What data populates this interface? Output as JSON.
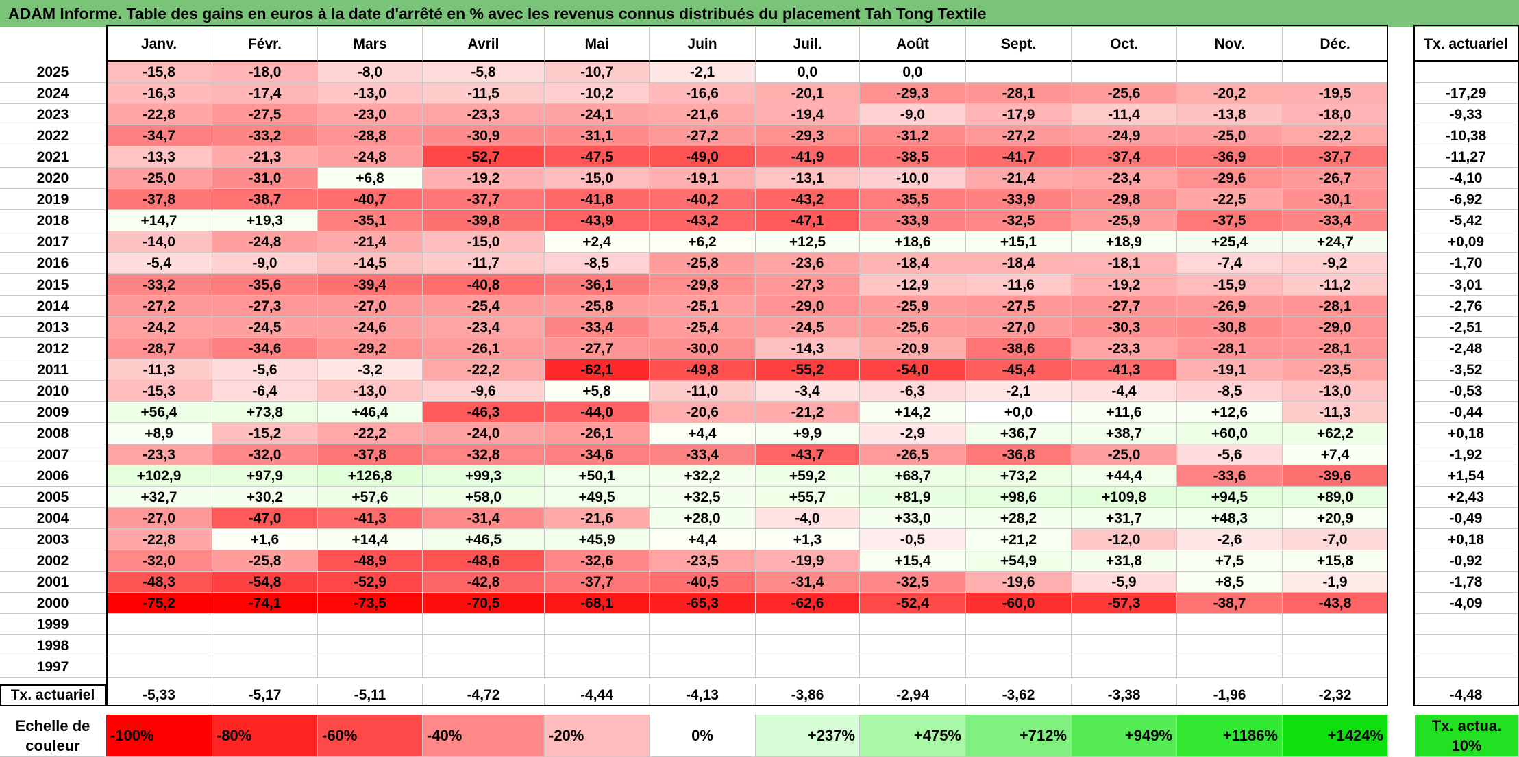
{
  "title": "ADAM Informe. Table des gains en euros à la date d'arrêté en % avec les revenus connus distribués du placement Tah Tong Textile",
  "months": [
    "Janv.",
    "Févr.",
    "Mars",
    "Avril",
    "Mai",
    "Juin",
    "Juil.",
    "Août",
    "Sept.",
    "Oct.",
    "Nov.",
    "Déc."
  ],
  "actuarial_header": "Tx. actuariel",
  "rows": [
    {
      "year": "2025",
      "values": [
        "-15,8",
        "-18,0",
        "-8,0",
        "-5,8",
        "-10,7",
        "-2,1",
        "0,0",
        "0,0",
        "",
        "",
        "",
        ""
      ],
      "rate": ""
    },
    {
      "year": "2024",
      "values": [
        "-16,3",
        "-17,4",
        "-13,0",
        "-11,5",
        "-10,2",
        "-16,6",
        "-20,1",
        "-29,3",
        "-28,1",
        "-25,6",
        "-20,2",
        "-19,5"
      ],
      "rate": "-17,29"
    },
    {
      "year": "2023",
      "values": [
        "-22,8",
        "-27,5",
        "-23,0",
        "-23,3",
        "-24,1",
        "-21,6",
        "-19,4",
        "-9,0",
        "-17,9",
        "-11,4",
        "-13,8",
        "-18,0"
      ],
      "rate": "-9,33"
    },
    {
      "year": "2022",
      "values": [
        "-34,7",
        "-33,2",
        "-28,8",
        "-30,9",
        "-31,1",
        "-27,2",
        "-29,3",
        "-31,2",
        "-27,2",
        "-24,9",
        "-25,0",
        "-22,2"
      ],
      "rate": "-10,38"
    },
    {
      "year": "2021",
      "values": [
        "-13,3",
        "-21,3",
        "-24,8",
        "-52,7",
        "-47,5",
        "-49,0",
        "-41,9",
        "-38,5",
        "-41,7",
        "-37,4",
        "-36,9",
        "-37,7"
      ],
      "rate": "-11,27"
    },
    {
      "year": "2020",
      "values": [
        "-25,0",
        "-31,0",
        "+6,8",
        "-19,2",
        "-15,0",
        "-19,1",
        "-13,1",
        "-10,0",
        "-21,4",
        "-23,4",
        "-29,6",
        "-26,7"
      ],
      "rate": "-4,10"
    },
    {
      "year": "2019",
      "values": [
        "-37,8",
        "-38,7",
        "-40,7",
        "-37,7",
        "-41,8",
        "-40,2",
        "-43,2",
        "-35,5",
        "-33,9",
        "-29,8",
        "-22,5",
        "-30,1"
      ],
      "rate": "-6,92"
    },
    {
      "year": "2018",
      "values": [
        "+14,7",
        "+19,3",
        "-35,1",
        "-39,8",
        "-43,9",
        "-43,2",
        "-47,1",
        "-33,9",
        "-32,5",
        "-25,9",
        "-37,5",
        "-33,4"
      ],
      "rate": "-5,42"
    },
    {
      "year": "2017",
      "values": [
        "-14,0",
        "-24,8",
        "-21,4",
        "-15,0",
        "+2,4",
        "+6,2",
        "+12,5",
        "+18,6",
        "+15,1",
        "+18,9",
        "+25,4",
        "+24,7"
      ],
      "rate": "+0,09"
    },
    {
      "year": "2016",
      "values": [
        "-5,4",
        "-9,0",
        "-14,5",
        "-11,7",
        "-8,5",
        "-25,8",
        "-23,6",
        "-18,4",
        "-18,4",
        "-18,1",
        "-7,4",
        "-9,2"
      ],
      "rate": "-1,70"
    },
    {
      "year": "2015",
      "values": [
        "-33,2",
        "-35,6",
        "-39,4",
        "-40,8",
        "-36,1",
        "-29,8",
        "-27,3",
        "-12,9",
        "-11,6",
        "-19,2",
        "-15,9",
        "-11,2"
      ],
      "rate": "-3,01"
    },
    {
      "year": "2014",
      "values": [
        "-27,2",
        "-27,3",
        "-27,0",
        "-25,4",
        "-25,8",
        "-25,1",
        "-29,0",
        "-25,9",
        "-27,5",
        "-27,7",
        "-26,9",
        "-28,1"
      ],
      "rate": "-2,76"
    },
    {
      "year": "2013",
      "values": [
        "-24,2",
        "-24,5",
        "-24,6",
        "-23,4",
        "-33,4",
        "-25,4",
        "-24,5",
        "-25,6",
        "-27,0",
        "-30,3",
        "-30,8",
        "-29,0"
      ],
      "rate": "-2,51"
    },
    {
      "year": "2012",
      "values": [
        "-28,7",
        "-34,6",
        "-29,2",
        "-26,1",
        "-27,7",
        "-30,0",
        "-14,3",
        "-20,9",
        "-38,6",
        "-23,3",
        "-28,1",
        "-28,1"
      ],
      "rate": "-2,48"
    },
    {
      "year": "2011",
      "values": [
        "-11,3",
        "-5,6",
        "-3,2",
        "-22,2",
        "-62,1",
        "-49,8",
        "-55,2",
        "-54,0",
        "-45,4",
        "-41,3",
        "-19,1",
        "-23,5"
      ],
      "rate": "-3,52"
    },
    {
      "year": "2010",
      "values": [
        "-15,3",
        "-6,4",
        "-13,0",
        "-9,6",
        "+5,8",
        "-11,0",
        "-3,4",
        "-6,3",
        "-2,1",
        "-4,4",
        "-8,5",
        "-13,0"
      ],
      "rate": "-0,53"
    },
    {
      "year": "2009",
      "values": [
        "+56,4",
        "+73,8",
        "+46,4",
        "-46,3",
        "-44,0",
        "-20,6",
        "-21,2",
        "+14,2",
        "+0,0",
        "+11,6",
        "+12,6",
        "-11,3"
      ],
      "rate": "-0,44"
    },
    {
      "year": "2008",
      "values": [
        "+8,9",
        "-15,2",
        "-22,2",
        "-24,0",
        "-26,1",
        "+4,4",
        "+9,9",
        "-2,9",
        "+36,7",
        "+38,7",
        "+60,0",
        "+62,2"
      ],
      "rate": "+0,18"
    },
    {
      "year": "2007",
      "values": [
        "-23,3",
        "-32,0",
        "-37,8",
        "-32,8",
        "-34,6",
        "-33,4",
        "-43,7",
        "-26,5",
        "-36,8",
        "-25,0",
        "-5,6",
        "+7,4"
      ],
      "rate": "-1,92"
    },
    {
      "year": "2006",
      "values": [
        "+102,9",
        "+97,9",
        "+126,8",
        "+99,3",
        "+50,1",
        "+32,2",
        "+59,2",
        "+68,7",
        "+73,2",
        "+44,4",
        "-33,6",
        "-39,6"
      ],
      "rate": "+1,54"
    },
    {
      "year": "2005",
      "values": [
        "+32,7",
        "+30,2",
        "+57,6",
        "+58,0",
        "+49,5",
        "+32,5",
        "+55,7",
        "+81,9",
        "+98,6",
        "+109,8",
        "+94,5",
        "+89,0"
      ],
      "rate": "+2,43"
    },
    {
      "year": "2004",
      "values": [
        "-27,0",
        "-47,0",
        "-41,3",
        "-31,4",
        "-21,6",
        "+28,0",
        "-4,0",
        "+33,0",
        "+28,2",
        "+31,7",
        "+48,3",
        "+20,9"
      ],
      "rate": "-0,49"
    },
    {
      "year": "2003",
      "values": [
        "-22,8",
        "+1,6",
        "+14,4",
        "+46,5",
        "+45,9",
        "+4,4",
        "+1,3",
        "-0,5",
        "+21,2",
        "-12,0",
        "-2,6",
        "-7,0"
      ],
      "rate": "+0,18"
    },
    {
      "year": "2002",
      "values": [
        "-32,0",
        "-25,8",
        "-48,9",
        "-48,6",
        "-32,6",
        "-23,5",
        "-19,9",
        "+15,4",
        "+54,9",
        "+31,8",
        "+7,5",
        "+15,8"
      ],
      "rate": "-0,92"
    },
    {
      "year": "2001",
      "values": [
        "-48,3",
        "-54,8",
        "-52,9",
        "-42,8",
        "-37,7",
        "-40,5",
        "-31,4",
        "-32,5",
        "-19,6",
        "-5,9",
        "+8,5",
        "-1,9"
      ],
      "rate": "-1,78"
    },
    {
      "year": "2000",
      "values": [
        "-75,2",
        "-74,1",
        "-73,5",
        "-70,5",
        "-68,1",
        "-65,3",
        "-62,6",
        "-52,4",
        "-60,0",
        "-57,3",
        "-38,7",
        "-43,8"
      ],
      "rate": "-4,09"
    },
    {
      "year": "1999",
      "values": [
        "",
        "",
        "",
        "",
        "",
        "",
        "",
        "",
        "",
        "",
        "",
        ""
      ],
      "rate": ""
    },
    {
      "year": "1998",
      "values": [
        "",
        "",
        "",
        "",
        "",
        "",
        "",
        "",
        "",
        "",
        "",
        ""
      ],
      "rate": ""
    },
    {
      "year": "1997",
      "values": [
        "",
        "",
        "",
        "",
        "",
        "",
        "",
        "",
        "",
        "",
        "",
        ""
      ],
      "rate": ""
    }
  ],
  "footer": {
    "label": "Tx. actuariel",
    "values": [
      "-5,33",
      "-5,17",
      "-5,11",
      "-4,72",
      "-4,44",
      "-4,13",
      "-3,86",
      "-2,94",
      "-3,62",
      "-3,38",
      "-1,96",
      "-2,32"
    ],
    "overall": "-4,48"
  },
  "scale": {
    "label": "Echelle de couleur",
    "items": [
      {
        "text": "-100%",
        "color": "#ff0000"
      },
      {
        "text": "-80%",
        "color": "#ff2424"
      },
      {
        "text": "-60%",
        "color": "#ff4848"
      },
      {
        "text": "-40%",
        "color": "#ff8888"
      },
      {
        "text": "-20%",
        "color": "#ffbcbc"
      },
      {
        "text": "0%",
        "color": "#ffffff"
      },
      {
        "text": "+237%",
        "color": "#d6fcd6"
      },
      {
        "text": "+475%",
        "color": "#a8f8a8"
      },
      {
        "text": "+712%",
        "color": "#80f080"
      },
      {
        "text": "+949%",
        "color": "#56ec56"
      },
      {
        "text": "+1186%",
        "color": "#33e833"
      },
      {
        "text": "+1424%",
        "color": "#10e010"
      }
    ],
    "actuarial_label": "Tx. actua. 10%",
    "actuarial_color": "#22e022"
  },
  "colors": {
    "title_bg": "#7ac47a",
    "negative_max": "#ff0000",
    "positive_max": "#00e000"
  }
}
